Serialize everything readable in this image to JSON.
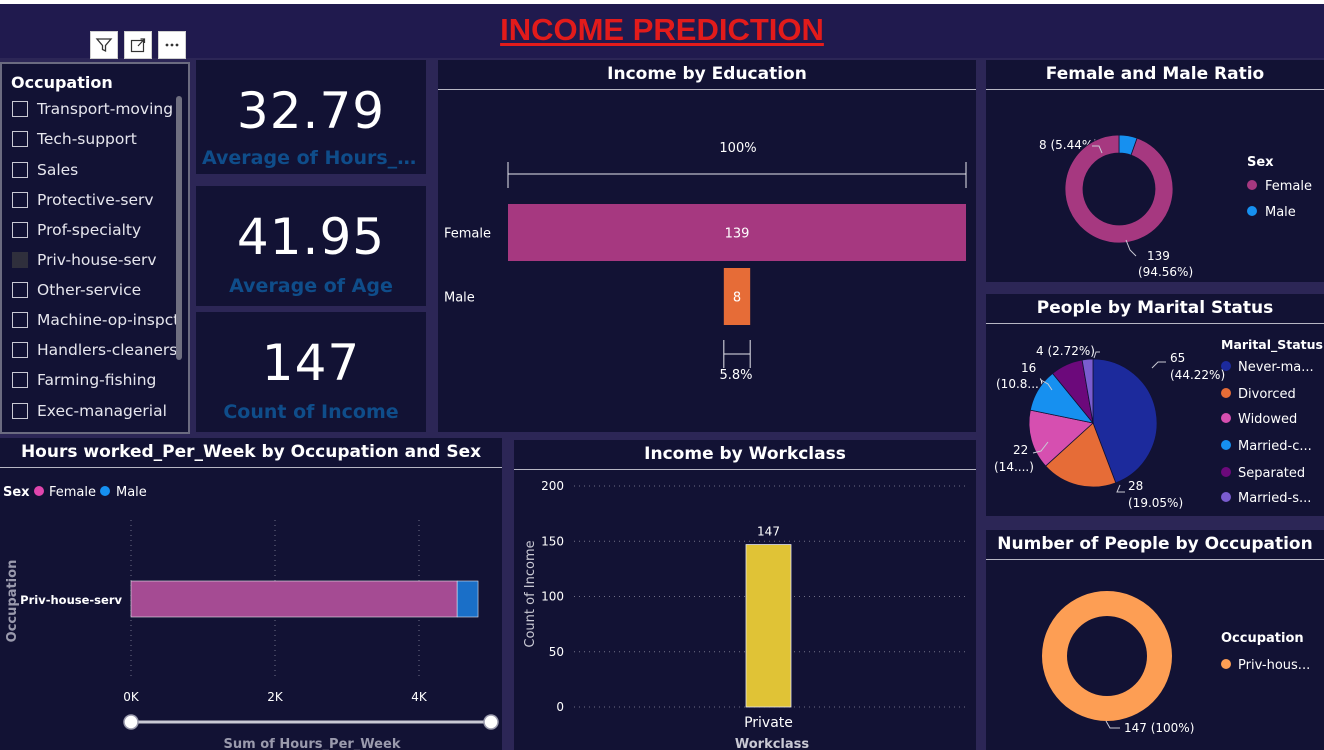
{
  "page_title": "INCOME PREDICTION",
  "occupation_slicer": {
    "title": "Occupation",
    "items": [
      {
        "label": "Transport-moving",
        "checked": false
      },
      {
        "label": "Tech-support",
        "checked": false
      },
      {
        "label": "Sales",
        "checked": false
      },
      {
        "label": "Protective-serv",
        "checked": false
      },
      {
        "label": "Prof-specialty",
        "checked": false
      },
      {
        "label": "Priv-house-serv",
        "checked": true
      },
      {
        "label": "Other-service",
        "checked": false
      },
      {
        "label": "Machine-op-inspct",
        "checked": false
      },
      {
        "label": "Handlers-cleaners",
        "checked": false
      },
      {
        "label": "Farming-fishing",
        "checked": false
      },
      {
        "label": "Exec-managerial",
        "checked": false
      }
    ]
  },
  "toolbar": {
    "filter_icon": "filter-icon",
    "focus_icon": "focus-mode-icon",
    "more_icon": "more-options-icon"
  },
  "kpis": {
    "hours": {
      "value": "32.79",
      "label": "Average of Hours_Per_Week"
    },
    "age": {
      "value": "41.95",
      "label": "Average of Age"
    },
    "count": {
      "value": "147",
      "label": "Count of Income"
    }
  },
  "colors": {
    "female": "#a63880",
    "male": "#1690f0",
    "orange": "#e66c37",
    "yellow": "#e0c336",
    "occupation": "#fd9e54"
  },
  "chart_data": [
    {
      "id": "income_by_education",
      "type": "bar",
      "title": "Income by Education",
      "categories": [
        "Female",
        "Male"
      ],
      "values": [
        139,
        8
      ],
      "top_label": "100%",
      "bottom_label": "5.8%"
    },
    {
      "id": "female_male_ratio",
      "type": "pie",
      "title": "Female and Male Ratio",
      "legend_title": "Sex",
      "labels": [
        "Female",
        "Male"
      ],
      "values": [
        139,
        8
      ],
      "data_labels": {
        "female_line1": "139",
        "female_line2": "(94.56%)",
        "male": "8 (5.44%)"
      }
    },
    {
      "id": "marital_status",
      "type": "pie",
      "title": "People by Marital Status",
      "legend_title": "Marital_Status",
      "labels": [
        "Never-married",
        "Divorced",
        "Widowed",
        "Married-civ-spouse",
        "Separated",
        "Married-spouse-absent"
      ],
      "legend_labels": [
        "Never-ma...",
        "Divorced",
        "Widowed",
        "Married-c...",
        "Separated",
        "Married-s..."
      ],
      "values": [
        65,
        28,
        22,
        16,
        12,
        4
      ],
      "colors": [
        "#1c2a9c",
        "#e66c37",
        "#d64fb0",
        "#1690f0",
        "#6c097b",
        "#7a5ccf"
      ],
      "data_labels": {
        "never_l1": "65",
        "never_l2": "(44.22%)",
        "div_l1": "28",
        "div_l2": "(19.05%)",
        "wid_l1": "22",
        "wid_l2": "(14....)",
        "mar_l1": "16",
        "mar_l2": "(10.8...)",
        "sep": "4 (2.72%)"
      }
    },
    {
      "id": "hours_by_occupation_sex",
      "type": "bar",
      "title": "Hours worked_Per_Week by Occupation and Sex",
      "legend_title": "Sex",
      "legend": [
        "Female",
        "Male"
      ],
      "categories": [
        "Priv-house-serv"
      ],
      "series": [
        {
          "name": "Female",
          "values": [
            4530
          ]
        },
        {
          "name": "Male",
          "values": [
            290
          ]
        }
      ],
      "xlabel": "Sum of Hours_Per_Week",
      "ylabel": "Occupation",
      "xlim": [
        0,
        5000
      ],
      "xticks": [
        0,
        2000,
        4000
      ],
      "xtick_labels": [
        "0K",
        "2K",
        "4K"
      ]
    },
    {
      "id": "income_by_workclass",
      "type": "bar",
      "title": "Income by Workclass",
      "categories": [
        "Private"
      ],
      "values": [
        147
      ],
      "data_label": "147",
      "xlabel": "Workclass",
      "ylabel": "Count of Income",
      "ylim": [
        0,
        200
      ],
      "yticks": [
        0,
        50,
        100,
        150,
        200
      ]
    },
    {
      "id": "people_by_occupation",
      "type": "pie",
      "title": "Number of People by Occupation",
      "legend_title": "Occupation",
      "labels": [
        "Priv-house-serv"
      ],
      "legend_labels": [
        "Priv-hous..."
      ],
      "values": [
        147
      ],
      "data_label": "147 (100%)"
    }
  ]
}
